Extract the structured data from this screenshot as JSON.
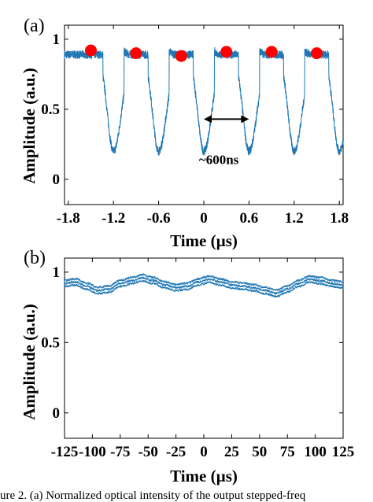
{
  "caption": "ure 2. (a) Normalized optical intensity of the output stepped-freq",
  "chart_data": [
    {
      "type": "line",
      "panel_label": "(a)",
      "xlabel": "Time (µs)",
      "ylabel": "Amplitude (a.u.)",
      "xlim": [
        -1.85,
        1.85
      ],
      "ylim": [
        -0.18,
        1.1
      ],
      "xticks": [
        -1.8,
        -1.2,
        -0.6,
        0,
        0.6,
        1.2,
        1.8
      ],
      "xtick_labels": [
        "-1.8",
        "-1.2",
        "-0.6",
        "0",
        "0.6",
        "1.2",
        "1.8"
      ],
      "yticks": [
        0,
        0.5,
        1
      ],
      "ytick_labels": [
        "0",
        "0.5",
        "1"
      ],
      "series": [
        {
          "color": "#1f77b4",
          "pulse_period_us": 0.6,
          "dip_times_us": [
            -1.2,
            -0.6,
            0,
            0.6,
            1.2,
            1.8
          ],
          "dip_min_amplitude": 0.2,
          "plateau_amplitude": 0.89
        }
      ],
      "markers": {
        "color": "#ff0000",
        "x": [
          -1.5,
          -0.9,
          -0.3,
          0.3,
          0.9,
          1.5
        ],
        "y": [
          0.92,
          0.9,
          0.88,
          0.91,
          0.91,
          0.9
        ]
      },
      "annotation": {
        "text": "~600ns",
        "arrow_from_x": 0.0,
        "arrow_to_x": 0.6,
        "arrow_y": 0.43,
        "text_x": 0.2,
        "text_y": 0.11
      }
    },
    {
      "type": "scatter",
      "panel_label": "(b)",
      "xlabel": "Time (µs)",
      "ylabel": "Amplitude (a.u.)",
      "xlim": [
        -125,
        125
      ],
      "ylim": [
        -0.18,
        1.1
      ],
      "xticks": [
        -125,
        -100,
        -75,
        -50,
        -25,
        0,
        25,
        50,
        75,
        100,
        125
      ],
      "xtick_labels": [
        "-125",
        "-100",
        "-75",
        "-50",
        "-25",
        "0",
        "25",
        "50",
        "75",
        "100",
        "125"
      ],
      "yticks": [
        0,
        0.5,
        1
      ],
      "ytick_labels": [
        "0",
        "0.5",
        "1"
      ],
      "series": [
        {
          "color": "#1f77b4",
          "x": [
            -125,
            -115,
            -105,
            -95,
            -85,
            -75,
            -65,
            -55,
            -45,
            -35,
            -25,
            -15,
            -5,
            5,
            15,
            25,
            35,
            45,
            55,
            65,
            75,
            85,
            95,
            105,
            115,
            125
          ],
          "y": [
            0.92,
            0.93,
            0.9,
            0.87,
            0.88,
            0.92,
            0.94,
            0.96,
            0.94,
            0.91,
            0.89,
            0.9,
            0.93,
            0.95,
            0.93,
            0.91,
            0.9,
            0.89,
            0.87,
            0.85,
            0.88,
            0.92,
            0.95,
            0.94,
            0.92,
            0.91
          ]
        }
      ]
    }
  ]
}
